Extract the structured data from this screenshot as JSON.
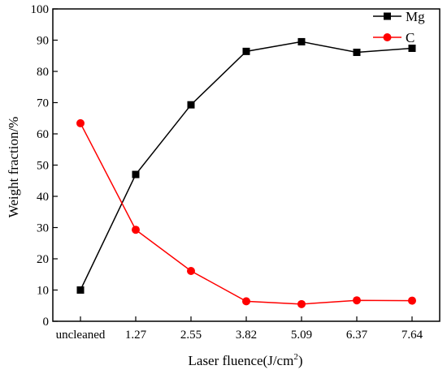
{
  "chart_data": {
    "type": "line",
    "categories": [
      "uncleaned",
      "1.27",
      "2.55",
      "3.82",
      "5.09",
      "6.37",
      "7.64"
    ],
    "series": [
      {
        "name": "Mg",
        "values": [
          10,
          47,
          69.3,
          86.4,
          89.5,
          86.1,
          87.4
        ],
        "color": "#000000",
        "marker": "square"
      },
      {
        "name": "C",
        "values": [
          63.4,
          29.3,
          16.1,
          6.4,
          5.5,
          6.7,
          6.6
        ],
        "color": "#ff0000",
        "marker": "circle"
      }
    ],
    "xlabel": "Laser fluence(J/cm",
    "xlabel_sup": "2",
    "xlabel_end": ")",
    "ylabel": "Weight fraction/%",
    "ylim": [
      0,
      100
    ],
    "yticks": [
      0,
      10,
      20,
      30,
      40,
      50,
      60,
      70,
      80,
      90,
      100
    ],
    "legend_position": "top-right",
    "grid": false
  }
}
